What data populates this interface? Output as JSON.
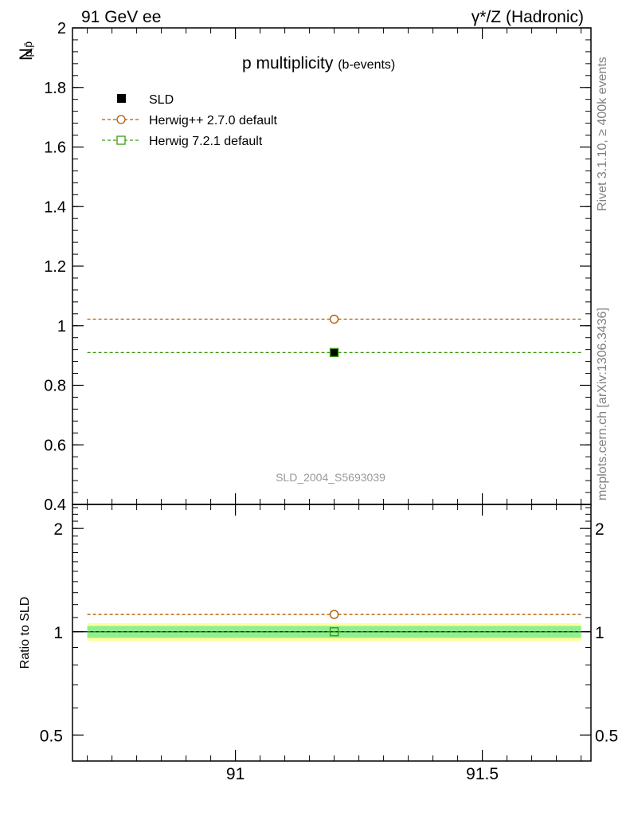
{
  "header": {
    "left": "91 GeV ee",
    "right": "γ*/Z (Hadronic)"
  },
  "side_labels": {
    "rivet": "Rivet 3.1.10, ≥ 400k events",
    "mcplots": "mcplots.cern.ch [arXiv:1306.3436]"
  },
  "colors": {
    "sld": "#000000",
    "herwig_pp": "#b05a00",
    "herwig7": "#3a9a10",
    "band_inner": "#90ee90",
    "band_outer": "#ffff99"
  },
  "chart_data": [
    {
      "type": "scatter",
      "title_main": "p multiplicity",
      "title_sub": "(b-events)",
      "ylabel": "N",
      "ylabel_sub": "p,p̄",
      "xlim": [
        90.67,
        91.72
      ],
      "ylim": [
        0.4,
        2.0
      ],
      "yticks": [
        0.4,
        0.6,
        0.8,
        1.0,
        1.2,
        1.4,
        1.6,
        1.8,
        2.0
      ],
      "ytick_labels": [
        "0.4",
        "0.6",
        "0.8",
        "1",
        "1.2",
        "1.4",
        "1.6",
        "1.8",
        "2"
      ],
      "analysis_label": "SLD_2004_S5693039",
      "legend_position": "top-left",
      "series": [
        {
          "name": "SLD",
          "style": "data",
          "x": 91.2,
          "y": 0.91
        },
        {
          "name": "Herwig++ 2.7.0 default",
          "style": "circle",
          "x": 91.2,
          "y": 1.022
        },
        {
          "name": "Herwig 7.2.1 default",
          "style": "square",
          "x": 91.2,
          "y": 0.91
        }
      ]
    },
    {
      "type": "scatter",
      "ylabel": "Ratio to SLD",
      "scale": "log",
      "xlim": [
        90.67,
        91.72
      ],
      "ylim": [
        0.42,
        2.35
      ],
      "yticks": [
        0.5,
        1,
        2
      ],
      "ytick_labels": [
        "0.5",
        "1",
        "2"
      ],
      "xticks": [
        91,
        91.5
      ],
      "xtick_labels": [
        "91",
        "91.5"
      ],
      "band_inner": [
        0.96,
        1.04
      ],
      "band_outer": [
        0.94,
        1.06
      ],
      "series": [
        {
          "name": "Herwig++ 2.7.0 default",
          "style": "circle",
          "x": 91.2,
          "y": 1.123
        },
        {
          "name": "Herwig 7.2.1 default",
          "style": "square",
          "x": 91.2,
          "y": 1.0
        }
      ]
    }
  ]
}
